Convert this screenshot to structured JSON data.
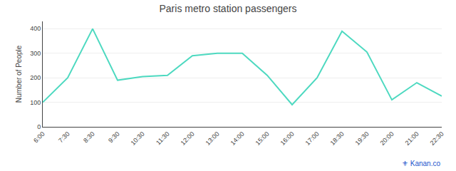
{
  "chart_data": {
    "type": "line",
    "title": "Paris metro station passengers",
    "ylabel": "Number of People",
    "categories": [
      "6:00",
      "7:30",
      "8:30",
      "9:30",
      "10:30",
      "11:30",
      "12:00",
      "13:00",
      "14:00",
      "15:00",
      "16:00",
      "17:00",
      "18:30",
      "19:30",
      "20:00",
      "21:00",
      "22:30"
    ],
    "values": [
      100,
      200,
      400,
      190,
      205,
      210,
      290,
      300,
      300,
      210,
      90,
      200,
      390,
      305,
      110,
      180,
      125
    ],
    "color": "#4DD9C0",
    "ylim": [
      0,
      430
    ],
    "yticks": [
      0,
      100,
      200,
      300,
      400
    ],
    "grid": true,
    "annotations": [
      "⚜ Kanan.co"
    ]
  }
}
